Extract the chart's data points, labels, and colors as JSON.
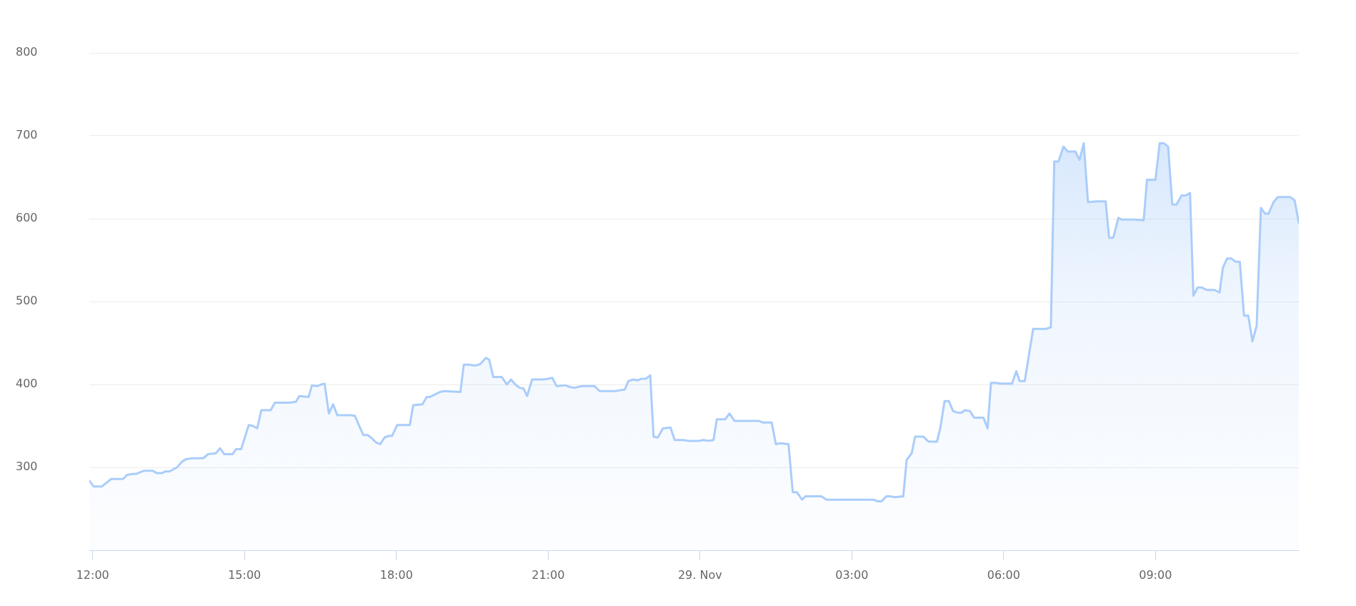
{
  "chart_data": {
    "type": "area",
    "color": "#aacdfa",
    "x": [
      "--11-28T11:56",
      "--11-28T12:01",
      "--11-28T12:11",
      "--11-28T12:22",
      "--11-28T12:36",
      "--11-28T12:41",
      "--11-28T12:47",
      "--11-28T12:51",
      "--11-28T13:01",
      "--11-28T13:11",
      "--11-28T13:16",
      "--11-28T13:22",
      "--11-28T13:26",
      "--11-28T13:31",
      "--11-28T13:40",
      "--11-28T13:46",
      "--11-28T13:51",
      "--11-28T13:58",
      "--11-28T14:11",
      "--11-28T14:17",
      "--11-28T14:26",
      "--11-28T14:31",
      "--11-28T14:36",
      "--11-28T14:46",
      "--11-28T14:50",
      "--11-28T14:56",
      "--11-28T15:05",
      "--11-28T15:10",
      "--11-28T15:15",
      "--11-28T15:20",
      "--11-28T15:31",
      "--11-28T15:36",
      "--11-28T15:53",
      "--11-28T16:01",
      "--11-28T16:05",
      "--11-28T16:16",
      "--11-28T16:20",
      "--11-28T16:26",
      "--11-28T16:31",
      "--11-28T16:35",
      "--11-28T16:40",
      "--11-28T16:45",
      "--11-28T16:50",
      "--11-28T17:06",
      "--11-28T17:11",
      "--11-28T17:16",
      "--11-28T17:21",
      "--11-28T17:26",
      "--11-28T17:31",
      "--11-28T17:36",
      "--11-28T17:41",
      "--11-28T17:46",
      "--11-28T17:51",
      "--11-28T17:55",
      "--11-28T18:01",
      "--11-28T18:11",
      "--11-28T18:16",
      "--11-28T18:20",
      "--11-28T18:31",
      "--11-28T18:36",
      "--11-28T18:40",
      "--11-28T18:46",
      "--11-28T18:52",
      "--11-28T18:56",
      "--11-28T19:16",
      "--11-28T19:20",
      "--11-28T19:26",
      "--11-28T19:31",
      "--11-28T19:35",
      "--11-28T19:40",
      "--11-28T19:46",
      "--11-28T19:50",
      "--11-28T19:55",
      "--11-28T20:05",
      "--11-28T20:11",
      "--11-28T20:16",
      "--11-28T20:21",
      "--11-28T20:26",
      "--11-28T20:31",
      "--11-28T20:35",
      "--11-28T20:41",
      "--11-28T20:55",
      "--11-28T21:05",
      "--11-28T21:10",
      "--11-28T21:20",
      "--11-28T21:26",
      "--11-28T21:31",
      "--11-28T21:40",
      "--11-28T21:55",
      "--11-28T22:01",
      "--11-28T22:12",
      "--11-28T22:20",
      "--11-28T22:25",
      "--11-28T22:31",
      "--11-28T22:35",
      "--11-28T22:41",
      "--11-28T22:46",
      "--11-28T22:51",
      "--11-28T22:56",
      "--11-28T23:01",
      "--11-28T23:05",
      "--11-28T23:10",
      "--11-28T23:16",
      "--11-28T23:25",
      "--11-28T23:30",
      "--11-28T23:40",
      "--11-28T23:46",
      "--11-28T23:59",
      "--11-29T00:04",
      "--11-29T00:10",
      "--11-29T00:16",
      "--11-29T00:20",
      "--11-29T00:30",
      "--11-29T00:35",
      "--11-29T00:41",
      "--11-29T00:50",
      "--11-29T00:56",
      "--11-29T01:01",
      "--11-29T01:10",
      "--11-29T01:15",
      "--11-29T01:25",
      "--11-29T01:30",
      "--11-29T01:35",
      "--11-29T01:45",
      "--11-29T01:50",
      "--11-29T01:55",
      "--11-29T02:01",
      "--11-29T02:05",
      "--11-29T02:24",
      "--11-29T02:30",
      "--11-29T02:44",
      "--11-29T02:55",
      "--11-29T03:10",
      "--11-29T03:20",
      "--11-29T03:26",
      "--11-29T03:31",
      "--11-29T03:35",
      "--11-29T03:41",
      "--11-29T03:46",
      "--11-29T03:51",
      "--11-29T04:01",
      "--11-29T04:05",
      "--11-29T04:11",
      "--11-29T04:15",
      "--11-29T04:25",
      "--11-29T04:31",
      "--11-29T04:41",
      "--11-29T04:45",
      "--11-29T04:50",
      "--11-29T04:55",
      "--11-29T05:00",
      "--11-29T05:05",
      "--11-29T05:10",
      "--11-29T05:14",
      "--11-29T05:20",
      "--11-29T05:25",
      "--11-29T05:36",
      "--11-29T05:41",
      "--11-29T05:45",
      "--11-29T05:51",
      "--11-29T05:56",
      "--11-29T06:10",
      "--11-29T06:15",
      "--11-29T06:19",
      "--11-29T06:25",
      "--11-29T06:35",
      "--11-29T06:40",
      "--11-29T06:50",
      "--11-29T06:56",
      "--11-29T07:00",
      "--11-29T07:05",
      "--11-29T07:11",
      "--11-29T07:16",
      "--11-29T07:25",
      "--11-29T07:30",
      "--11-29T07:35",
      "--11-29T07:40",
      "--11-29T07:50",
      "--11-29T08:01",
      "--11-29T08:05",
      "--11-29T08:10",
      "--11-29T08:16",
      "--11-29T08:20",
      "--11-29T08:35",
      "--11-29T08:46",
      "--11-29T08:50",
      "--11-29T09:00",
      "--11-29T09:05",
      "--11-29T09:10",
      "--11-29T09:15",
      "--11-29T09:20",
      "--11-29T09:25",
      "--11-29T09:31",
      "--11-29T09:36",
      "--11-29T09:41",
      "--11-29T09:45",
      "--11-29T09:50",
      "--11-29T09:55",
      "--11-29T10:01",
      "--11-29T10:10",
      "--11-29T10:16",
      "--11-29T10:20",
      "--11-29T10:25",
      "--11-29T10:30",
      "--11-29T10:35",
      "--11-29T10:40",
      "--11-29T10:45",
      "--11-29T10:50",
      "--11-29T10:55",
      "--11-29T11:00",
      "--11-29T11:05",
      "--11-29T11:10",
      "--11-29T11:14",
      "--11-29T11:20",
      "--11-29T11:25",
      "--11-29T11:40",
      "--11-29T11:45",
      "--11-29T11:50"
    ],
    "values": [
      284,
      277,
      277,
      286,
      286,
      291,
      292,
      292,
      296,
      296,
      293,
      293,
      295,
      295,
      300,
      307,
      310,
      311,
      311,
      316,
      317,
      323,
      316,
      316,
      322,
      322,
      351,
      350,
      347,
      369,
      369,
      378,
      378,
      379,
      386,
      385,
      399,
      398,
      400,
      401,
      365,
      376,
      363,
      363,
      362,
      350,
      339,
      339,
      335,
      330,
      328,
      336,
      338,
      338,
      351,
      351,
      351,
      375,
      376,
      385,
      385,
      388,
      391,
      392,
      391,
      424,
      424,
      423,
      423,
      425,
      432,
      430,
      409,
      409,
      400,
      406,
      400,
      396,
      395,
      386,
      406,
      406,
      408,
      398,
      399,
      397,
      396,
      398,
      398,
      392,
      392,
      392,
      393,
      394,
      404,
      406,
      405,
      407,
      407,
      411,
      337,
      336,
      347,
      348,
      333,
      333,
      332,
      332,
      333,
      332,
      333,
      358,
      358,
      365,
      356,
      356,
      356,
      356,
      356,
      354,
      354,
      328,
      329,
      328,
      270,
      270,
      261,
      265,
      265,
      261,
      261,
      261,
      261,
      261,
      261,
      259,
      259,
      265,
      265,
      264,
      265,
      309,
      317,
      337,
      337,
      331,
      331,
      348,
      380,
      380,
      368,
      366,
      366,
      369,
      368,
      360,
      360,
      347,
      402,
      402,
      401,
      401,
      416,
      404,
      404,
      467,
      467,
      467,
      469,
      669,
      669,
      687,
      681,
      681,
      671,
      691,
      620,
      621,
      621,
      577,
      577,
      601,
      599,
      599,
      598,
      647,
      647,
      691,
      691,
      687,
      617,
      617,
      628,
      628,
      631,
      507,
      517,
      517,
      514,
      514,
      511,
      541,
      552,
      552,
      548,
      548,
      483,
      483,
      452,
      471,
      613,
      606,
      606,
      620,
      626,
      626,
      622,
      595
    ],
    "xlim": [
      "--11-28T11:56",
      "--11-29T11:50"
    ],
    "xticks": [
      {
        "value": "--11-28T12:00",
        "label": "12:00"
      },
      {
        "value": "--11-28T15:00",
        "label": "15:00"
      },
      {
        "value": "--11-28T18:00",
        "label": "18:00"
      },
      {
        "value": "--11-28T21:00",
        "label": "21:00"
      },
      {
        "value": "--11-29T00:00",
        "label": "29. Nov"
      },
      {
        "value": "--11-29T03:00",
        "label": "03:00"
      },
      {
        "value": "--11-29T06:00",
        "label": "06:00"
      },
      {
        "value": "--11-29T09:00",
        "label": "09:00"
      }
    ],
    "ylim": [
      200,
      800
    ],
    "yticks": [
      300,
      400,
      500,
      600,
      700,
      800
    ],
    "grid": "y"
  }
}
